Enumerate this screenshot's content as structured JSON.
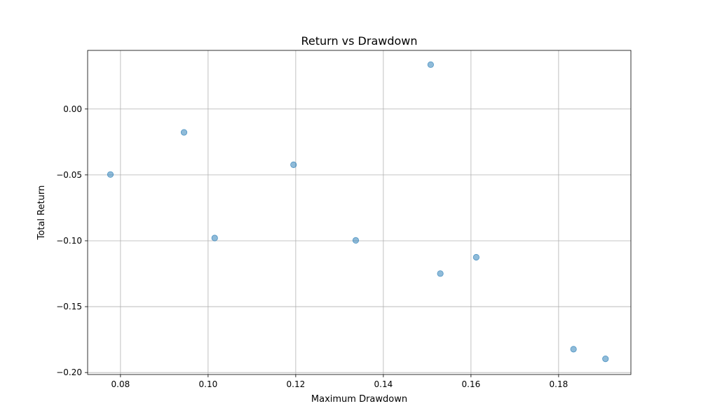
{
  "chart_data": {
    "type": "scatter",
    "title": "Return vs Drawdown",
    "xlabel": "Maximum Drawdown",
    "ylabel": "Total Return",
    "xlim": [
      0.0725,
      0.1965
    ],
    "ylim": [
      -0.2015,
      0.0445
    ],
    "xticks": [
      0.08,
      0.1,
      0.12,
      0.14,
      0.16,
      0.18
    ],
    "xtick_labels": [
      "0.08",
      "0.10",
      "0.12",
      "0.14",
      "0.16",
      "0.18"
    ],
    "yticks": [
      0.0,
      -0.05,
      -0.1,
      -0.15,
      -0.2
    ],
    "ytick_labels": [
      "0.00",
      "−0.05",
      "−0.10",
      "−0.15",
      "−0.20"
    ],
    "grid": true,
    "marker_color": "#1f77b4",
    "marker_alpha": 0.5,
    "points": [
      {
        "x": 0.0777,
        "y": -0.0497
      },
      {
        "x": 0.0945,
        "y": -0.0177
      },
      {
        "x": 0.1015,
        "y": -0.0979
      },
      {
        "x": 0.1195,
        "y": -0.0423
      },
      {
        "x": 0.1337,
        "y": -0.0997
      },
      {
        "x": 0.1508,
        "y": 0.0337
      },
      {
        "x": 0.153,
        "y": -0.1249
      },
      {
        "x": 0.1612,
        "y": -0.1125
      },
      {
        "x": 0.1834,
        "y": -0.1823
      },
      {
        "x": 0.1907,
        "y": -0.1896
      }
    ]
  }
}
